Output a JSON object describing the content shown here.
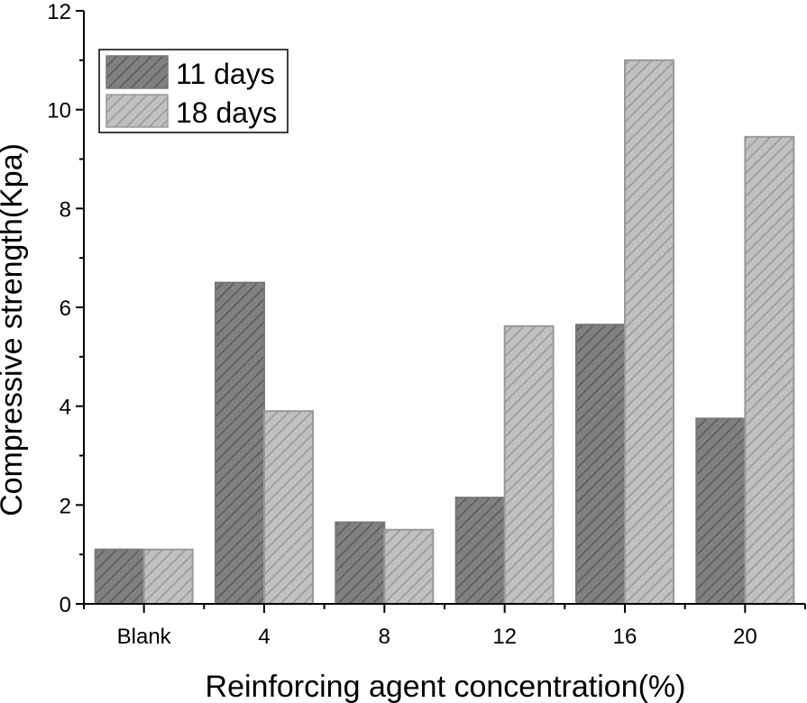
{
  "chart_data": {
    "type": "bar",
    "title": "",
    "xlabel": "Reinforcing agent concentration(%)",
    "ylabel": "Compressive strength(Kpa)",
    "categories": [
      "Blank",
      "4",
      "8",
      "12",
      "16",
      "20"
    ],
    "ylim": [
      0,
      12
    ],
    "yticks": [
      0,
      2,
      4,
      6,
      8,
      10,
      12
    ],
    "ytick_labels": [
      "0",
      "2",
      "4",
      "6",
      "8",
      "10",
      "12"
    ],
    "grid": false,
    "legend_position": "top-left",
    "series": [
      {
        "name": "11 days",
        "values": [
          1.1,
          6.5,
          1.65,
          2.15,
          5.65,
          3.75
        ],
        "color": "#808080"
      },
      {
        "name": "18 days",
        "values": [
          1.1,
          3.9,
          1.5,
          5.62,
          11.0,
          9.45
        ],
        "color": "#c0c0c0"
      }
    ]
  }
}
